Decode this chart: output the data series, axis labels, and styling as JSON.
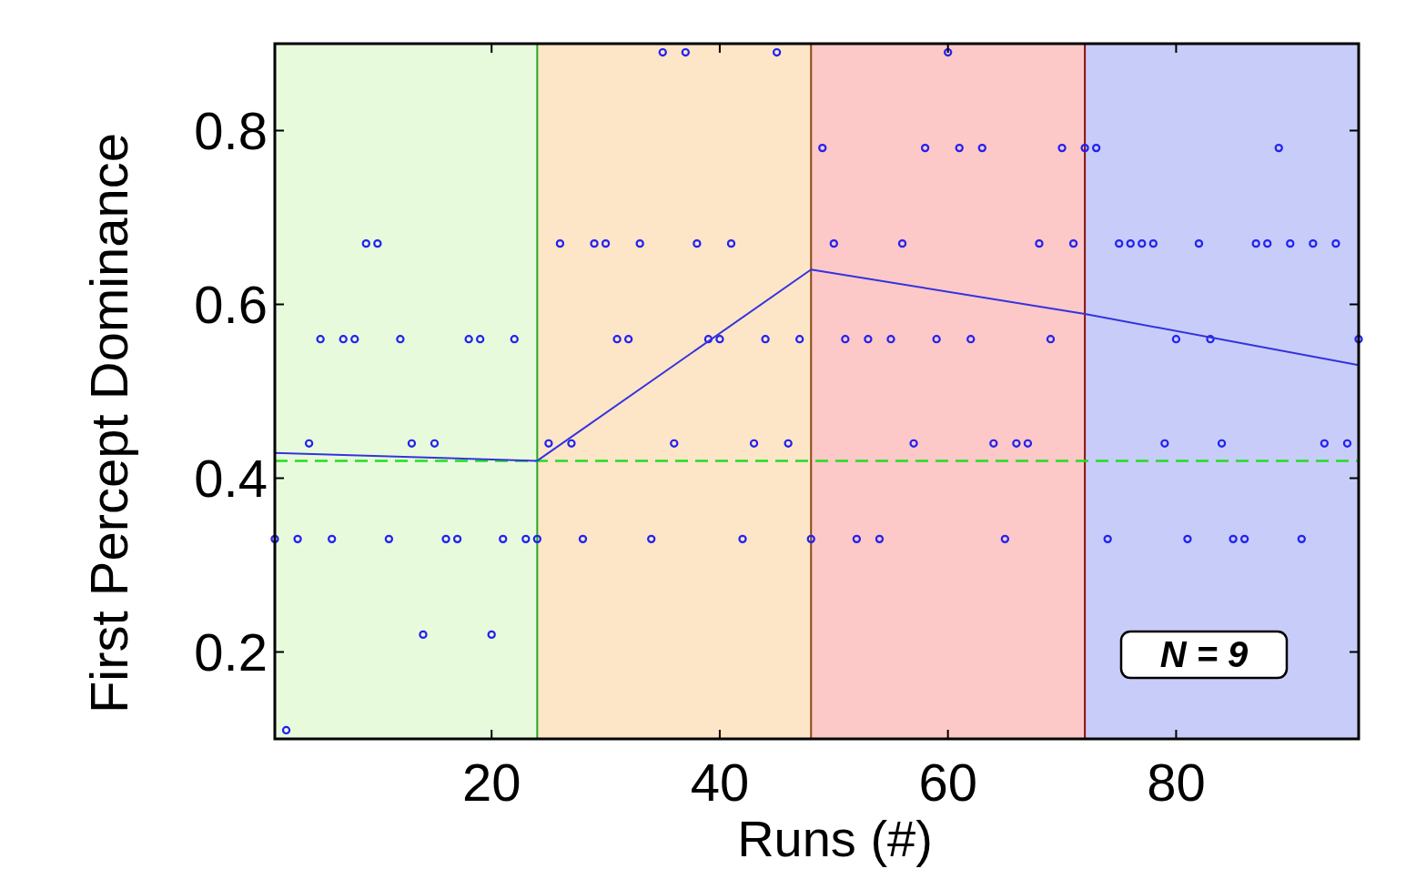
{
  "chart_data": {
    "type": "scatter",
    "xlabel": "Runs (#)",
    "ylabel": "First Percept Dominance",
    "xlim": [
      1,
      96
    ],
    "ylim": [
      0.1,
      0.9
    ],
    "xticks": [
      20,
      40,
      60,
      80
    ],
    "yticks": [
      0.2,
      0.4,
      0.6,
      0.8
    ],
    "grid": false,
    "marker": "circle",
    "bands": [
      {
        "axis": "x",
        "from": 1,
        "to": 24,
        "color": "#e8fadc"
      },
      {
        "axis": "x",
        "from": 24,
        "to": 48,
        "color": "#fde5c8"
      },
      {
        "axis": "x",
        "from": 48,
        "to": 72,
        "color": "#fdc8c8"
      },
      {
        "axis": "x",
        "from": 72,
        "to": 96,
        "color": "#c8ccf8"
      }
    ],
    "ref_lines": [
      {
        "axis": "x",
        "value": 24,
        "color": "#22aa22",
        "line_style": "solid"
      },
      {
        "axis": "x",
        "value": 48,
        "color": "#8a4a10",
        "line_style": "solid"
      },
      {
        "axis": "x",
        "value": 72,
        "color": "#8a1010",
        "line_style": "solid"
      },
      {
        "axis": "y",
        "value": 0.42,
        "color": "#22dd22",
        "line_style": "dashed"
      }
    ],
    "annotations": [
      "N = 9"
    ],
    "x": [
      1,
      2,
      3,
      4,
      5,
      6,
      7,
      8,
      9,
      10,
      11,
      12,
      13,
      14,
      15,
      16,
      17,
      18,
      19,
      20,
      21,
      22,
      23,
      24,
      25,
      26,
      27,
      28,
      29,
      30,
      31,
      32,
      33,
      34,
      35,
      36,
      37,
      38,
      39,
      40,
      41,
      42,
      43,
      44,
      45,
      46,
      47,
      48,
      49,
      50,
      51,
      52,
      53,
      54,
      55,
      56,
      57,
      58,
      59,
      60,
      61,
      62,
      63,
      64,
      65,
      66,
      67,
      68,
      69,
      70,
      71,
      72,
      73,
      74,
      75,
      76,
      77,
      78,
      79,
      80,
      81,
      82,
      83,
      84,
      85,
      86,
      87,
      88,
      89,
      90,
      91,
      92,
      93,
      94,
      95,
      96
    ],
    "series": [
      {
        "type": "scatter",
        "color": "#2222ee",
        "values": [
          0.33,
          0.11,
          0.33,
          0.44,
          0.56,
          0.33,
          0.56,
          0.56,
          0.67,
          0.67,
          0.33,
          0.56,
          0.44,
          0.22,
          0.44,
          0.33,
          0.33,
          0.56,
          0.56,
          0.22,
          0.33,
          0.56,
          0.33,
          0.33,
          0.44,
          0.67,
          0.44,
          0.33,
          0.67,
          0.67,
          0.56,
          0.56,
          0.67,
          0.33,
          0.89,
          0.44,
          0.89,
          0.67,
          0.56,
          0.56,
          0.67,
          0.33,
          0.44,
          0.56,
          0.89,
          0.44,
          0.56,
          0.33,
          0.78,
          0.67,
          0.56,
          0.33,
          0.56,
          0.33,
          0.56,
          0.67,
          0.44,
          0.78,
          0.56,
          0.89,
          0.78,
          0.56,
          0.78,
          0.44,
          0.33,
          0.44,
          0.44,
          0.67,
          0.56,
          0.78,
          0.67,
          0.78,
          0.78,
          0.33,
          0.67,
          0.67,
          0.67,
          0.67,
          0.44,
          0.56,
          0.33,
          0.67,
          0.56,
          0.44,
          0.33,
          0.33,
          0.67,
          0.67,
          0.78,
          0.67,
          0.33,
          0.67,
          0.44,
          0.67,
          0.44,
          0.56
        ]
      },
      {
        "type": "line",
        "color": "#3333dd",
        "marker": "none",
        "x": [
          1,
          24,
          48,
          72,
          96
        ],
        "values": [
          0.429,
          0.42,
          0.64,
          0.589,
          0.53
        ]
      }
    ]
  }
}
